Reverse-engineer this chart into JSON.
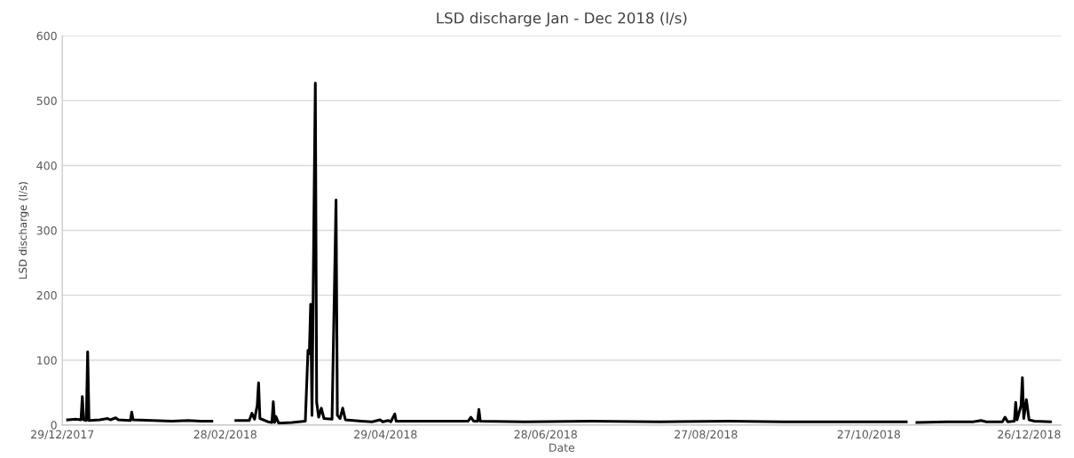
{
  "chart_data": {
    "type": "line",
    "title": "LSD discharge Jan - Dec 2018 (l/s)",
    "xlabel": "Date",
    "ylabel": "LSD discharge (l/s)",
    "x": [
      "2017-12-31",
      "2018-01-03",
      "2018-01-05T00:00",
      "2018-01-05T12:00",
      "2018-01-06T00:00",
      "2018-01-07T00:00",
      "2018-01-07T12:00",
      "2018-01-08T00:00",
      "2018-01-12",
      "2018-01-15",
      "2018-01-16",
      "2018-01-18",
      "2018-01-19",
      "2018-01-23T12:00",
      "2018-01-24T00:00",
      "2018-01-24T12:00",
      "2018-02-01",
      "2018-02-08",
      "2018-02-14",
      "2018-02-19",
      "2018-02-23",
      "2018-02-27",
      "2018-03-04",
      "2018-03-09",
      "2018-03-10",
      "2018-03-11",
      "2018-03-12T00:00",
      "2018-03-12T12:00",
      "2018-03-13T00:00",
      "2018-03-16",
      "2018-03-17T12:00",
      "2018-03-18T00:00",
      "2018-03-18T12:00",
      "2018-03-19",
      "2018-03-20",
      "2018-03-25",
      "2018-03-30",
      "2018-03-31T00:00",
      "2018-03-31T12:00",
      "2018-04-01T00:00",
      "2018-04-01T12:00",
      "2018-04-02T06:00",
      "2018-04-02T18:00",
      "2018-04-03T06:00",
      "2018-04-04",
      "2018-04-05",
      "2018-04-06",
      "2018-04-09",
      "2018-04-10T00:00",
      "2018-04-10T12:00",
      "2018-04-11T00:00",
      "2018-04-12",
      "2018-04-13",
      "2018-04-14",
      "2018-04-20",
      "2018-04-24",
      "2018-04-27",
      "2018-04-28",
      "2018-04-30",
      "2018-05-01",
      "2018-05-02T12:00",
      "2018-05-03",
      "2018-05-15",
      "2018-05-30",
      "2018-05-31",
      "2018-06-01",
      "2018-06-02T12:00",
      "2018-06-03",
      "2018-06-03T12:00",
      "2018-06-20",
      "2018-07-15",
      "2018-08-10",
      "2018-09-05",
      "2018-09-25",
      "2018-10-20",
      "2018-11-10",
      "2018-11-12",
      "2018-11-14",
      "2018-11-25",
      "2018-12-05",
      "2018-12-08",
      "2018-12-10",
      "2018-12-16",
      "2018-12-17",
      "2018-12-18",
      "2018-12-20T12:00",
      "2018-12-21",
      "2018-12-21T12:00",
      "2018-12-23T00:00",
      "2018-12-23T12:00",
      "2018-12-24T00:00",
      "2018-12-25",
      "2018-12-26",
      "2018-12-28",
      "2019-01-03"
    ],
    "series": [
      {
        "color": "#000000",
        "values": [
          8,
          9,
          8,
          44,
          8,
          7,
          113,
          7,
          8,
          10,
          8,
          11,
          8,
          7,
          20,
          8,
          7,
          6,
          7,
          6,
          6,
          null,
          7,
          7,
          18,
          9,
          30,
          65,
          10,
          5,
          4,
          36,
          4,
          13,
          3,
          4,
          6,
          115,
          110,
          186,
          15,
          333,
          527,
          35,
          12,
          26,
          10,
          9,
          232,
          347,
          15,
          10,
          26,
          8,
          6,
          5,
          8,
          5,
          7,
          5,
          17,
          6,
          6,
          6,
          12,
          6,
          6,
          24,
          6,
          5,
          6,
          5,
          6,
          5,
          5,
          5,
          null,
          4,
          5,
          5,
          7,
          5,
          5,
          12,
          5,
          6,
          35,
          8,
          30,
          73,
          10,
          39,
          8,
          6,
          5
        ]
      }
    ],
    "xlim": [
      "2017-12-29",
      "2019-01-07"
    ],
    "xticks": [
      {
        "value": "2017-12-29",
        "label": "29/12/2017"
      },
      {
        "value": "2018-02-28",
        "label": "28/02/2018"
      },
      {
        "value": "2018-04-29",
        "label": "29/04/2018"
      },
      {
        "value": "2018-06-28",
        "label": "28/06/2018"
      },
      {
        "value": "2018-08-27",
        "label": "27/08/2018"
      },
      {
        "value": "2018-10-27",
        "label": "27/10/2018"
      },
      {
        "value": "2018-12-26",
        "label": "26/12/2018"
      }
    ],
    "ylim": [
      0,
      600
    ],
    "yticks": [
      0,
      100,
      200,
      300,
      400,
      500,
      600
    ],
    "grid": "y",
    "marker": "none",
    "line_style": "solid"
  }
}
